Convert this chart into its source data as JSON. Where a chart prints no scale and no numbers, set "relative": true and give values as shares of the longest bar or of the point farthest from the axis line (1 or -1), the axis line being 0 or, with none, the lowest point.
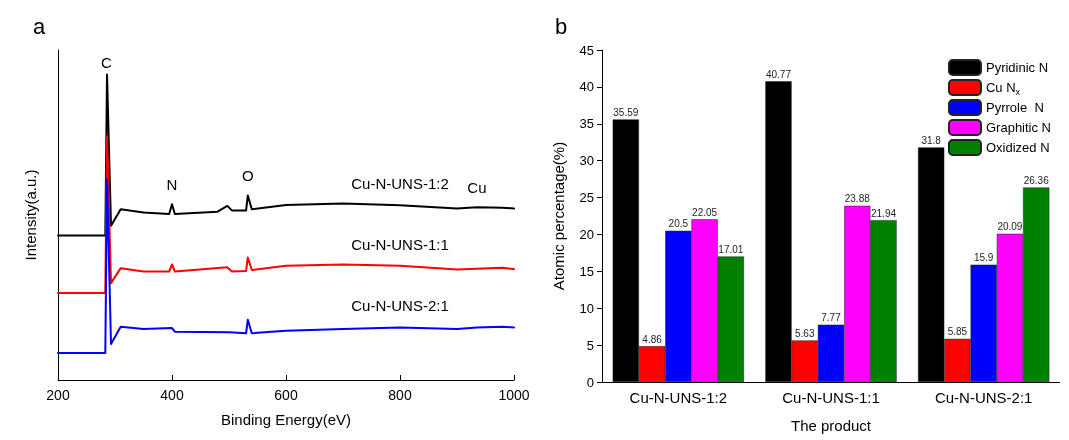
{
  "chart_data": [
    {
      "type": "line",
      "title": "a",
      "xlabel": "Binding Energy(eV)",
      "ylabel": "Intensity(a.u.)",
      "relative": true,
      "xlim": [
        200,
        1000
      ],
      "xticks": [
        200,
        400,
        600,
        800,
        1000
      ],
      "tick_labels": "x",
      "grid": false,
      "legend": false,
      "marker": "none",
      "line_style": "solid",
      "series": [
        {
          "name": "Cu-N-UNS-1:2",
          "color": "#000000",
          "x": [
            200,
            283,
            286,
            293,
            310,
            350,
            395,
            400,
            405,
            480,
            497,
            505,
            530,
            533,
            540,
            600,
            700,
            800,
            900,
            935,
            980,
            1000
          ],
          "values": [
            0.473,
            0.473,
            1.0,
            0.505,
            0.559,
            0.548,
            0.543,
            0.575,
            0.543,
            0.551,
            0.57,
            0.555,
            0.555,
            0.604,
            0.559,
            0.573,
            0.578,
            0.572,
            0.561,
            0.565,
            0.564,
            0.561
          ]
        },
        {
          "name": "Cu-N-UNS-1:1",
          "color": "#ff0000",
          "x": [
            200,
            283,
            286,
            293,
            310,
            350,
            395,
            400,
            405,
            497,
            505,
            530,
            533,
            540,
            600,
            700,
            800,
            900,
            980,
            1000
          ],
          "values": [
            0.285,
            0.285,
            0.796,
            0.317,
            0.366,
            0.355,
            0.355,
            0.378,
            0.355,
            0.369,
            0.355,
            0.357,
            0.401,
            0.36,
            0.374,
            0.378,
            0.374,
            0.362,
            0.367,
            0.363
          ]
        },
        {
          "name": "Cu-N-UNS-2:1",
          "color": "#0000ff",
          "x": [
            200,
            283,
            286,
            293,
            310,
            350,
            400,
            405,
            500,
            530,
            533,
            540,
            600,
            700,
            800,
            900,
            935,
            980,
            1000
          ],
          "values": [
            0.088,
            0.088,
            0.656,
            0.118,
            0.174,
            0.167,
            0.17,
            0.158,
            0.156,
            0.153,
            0.197,
            0.153,
            0.161,
            0.167,
            0.172,
            0.167,
            0.172,
            0.174,
            0.172
          ]
        }
      ],
      "annotations": [
        {
          "text": "C",
          "x": 285,
          "y": 1.0
        },
        {
          "text": "N",
          "x": 400,
          "y": 0.575
        },
        {
          "text": "O",
          "x": 533,
          "y": 0.604
        },
        {
          "text": "Cu",
          "x": 935,
          "y": 0.565
        }
      ]
    },
    {
      "type": "bar",
      "title": "b",
      "xlabel": "The product",
      "ylabel": "Atomic percentage(%)",
      "categories": [
        "Cu-N-UNS-1:2",
        "Cu-N-UNS-1:1",
        "Cu-N-UNS-2:1"
      ],
      "ylim": [
        0,
        45
      ],
      "yticks": [
        0,
        5,
        10,
        15,
        20,
        25,
        30,
        35,
        40,
        45
      ],
      "grid": false,
      "legend": "top right",
      "data_labels": true,
      "series": [
        {
          "name": "Pyridinic N",
          "color": "#000000",
          "values": [
            35.59,
            40.77,
            31.8
          ]
        },
        {
          "name": "Cu N$_{x}$",
          "color": "#ff0000",
          "values": [
            4.86,
            5.63,
            5.85
          ]
        },
        {
          "name": "Pyrrole  N",
          "color": "#0000ff",
          "values": [
            20.5,
            7.77,
            15.9
          ]
        },
        {
          "name": "Graphitic N",
          "color": "#ff00ff",
          "values": [
            22.05,
            23.88,
            20.09
          ]
        },
        {
          "name": "Oxidized N",
          "color": "#008000",
          "values": [
            17.01,
            21.94,
            26.36
          ]
        }
      ]
    }
  ]
}
